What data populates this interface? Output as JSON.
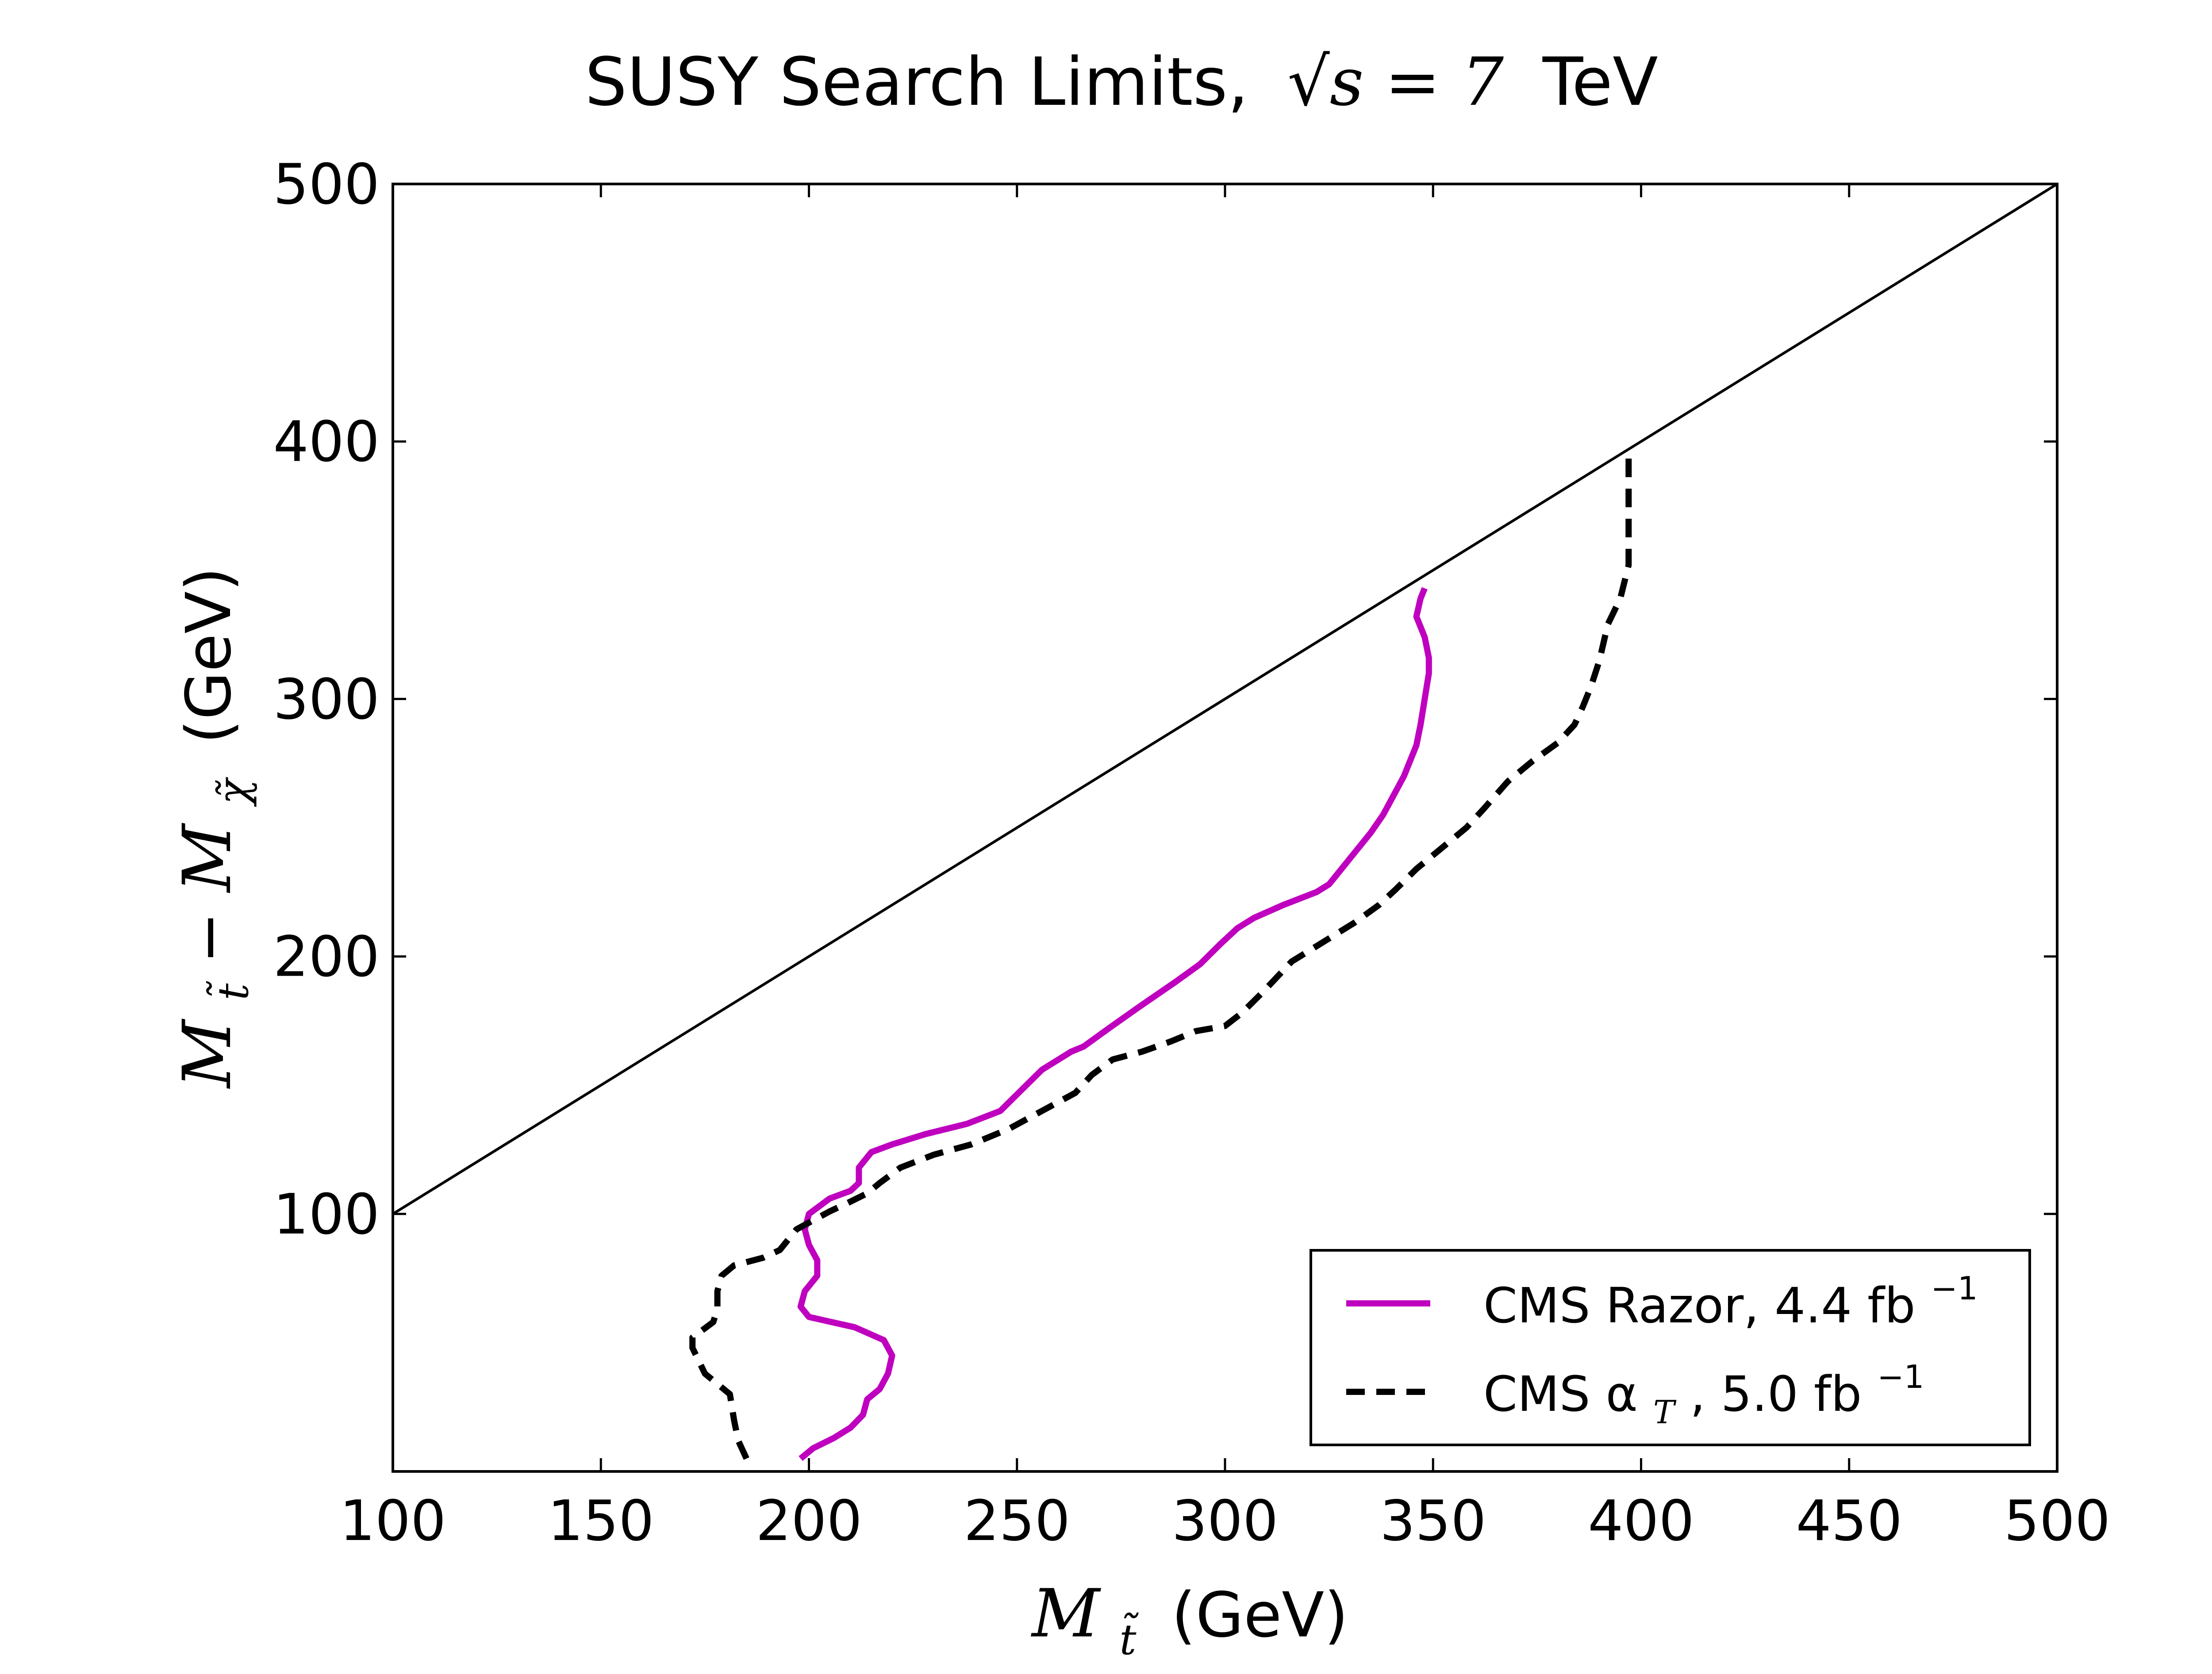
{
  "chart_data": {
    "type": "line",
    "title": {
      "prefix": "SUSY Search Limits,",
      "math": "√s = 7",
      "suffix": "TeV"
    },
    "xlabel": {
      "math": "M",
      "sub": "t̃",
      "unit": "(GeV)"
    },
    "ylabel": {
      "math_a": "M",
      "sub_a": "t̃",
      "minus": "−",
      "math_b": "M",
      "sub_b": "χ̃",
      "unit": "(GeV)"
    },
    "xlim": [
      100,
      500
    ],
    "ylim": [
      0,
      500
    ],
    "x_ticks": [
      100,
      150,
      200,
      250,
      300,
      350,
      400,
      450,
      500
    ],
    "y_ticks": [
      100,
      200,
      300,
      400,
      500
    ],
    "grid": false,
    "legend_position": "bottom-right",
    "reference_line": {
      "points": [
        [
          100,
          100
        ],
        [
          500,
          500
        ]
      ],
      "color": "#000000"
    },
    "series": [
      {
        "name": "CMS Razor, 4.4 fb",
        "name_sup": "−1",
        "style": "solid",
        "color": "#bf00bf",
        "points": [
          [
            198,
            5
          ],
          [
            201,
            9
          ],
          [
            206,
            13
          ],
          [
            210,
            17
          ],
          [
            213,
            22
          ],
          [
            214,
            28
          ],
          [
            217,
            32
          ],
          [
            219,
            38
          ],
          [
            220,
            45
          ],
          [
            218,
            51
          ],
          [
            211,
            56
          ],
          [
            200,
            60
          ],
          [
            198,
            64
          ],
          [
            199,
            70
          ],
          [
            202,
            76
          ],
          [
            202,
            82
          ],
          [
            200,
            88
          ],
          [
            199,
            94
          ],
          [
            200,
            100
          ],
          [
            205,
            106
          ],
          [
            210,
            109
          ],
          [
            212,
            112
          ],
          [
            212,
            118
          ],
          [
            215,
            124
          ],
          [
            220,
            127
          ],
          [
            228,
            131
          ],
          [
            238,
            135
          ],
          [
            246,
            140
          ],
          [
            251,
            148
          ],
          [
            256,
            156
          ],
          [
            263,
            163
          ],
          [
            266,
            165
          ],
          [
            272,
            172
          ],
          [
            279,
            180
          ],
          [
            288,
            190
          ],
          [
            294,
            197
          ],
          [
            299,
            205
          ],
          [
            303,
            211
          ],
          [
            307,
            215
          ],
          [
            314,
            220
          ],
          [
            322,
            225
          ],
          [
            325,
            228
          ],
          [
            327,
            232
          ],
          [
            330,
            238
          ],
          [
            335,
            248
          ],
          [
            338,
            255
          ],
          [
            343,
            270
          ],
          [
            346,
            282
          ],
          [
            347,
            290
          ],
          [
            348,
            300
          ],
          [
            349,
            310
          ],
          [
            349,
            316
          ],
          [
            348,
            324
          ],
          [
            346,
            332
          ],
          [
            347,
            339
          ],
          [
            348,
            343
          ]
        ]
      },
      {
        "name": "CMS α",
        "name_sub": "T",
        "name_suffix": ", 5.0 fb",
        "name_sup": "−1",
        "style": "dashed",
        "color": "#000000",
        "points": [
          [
            185,
            5
          ],
          [
            183,
            12
          ],
          [
            182,
            20
          ],
          [
            181,
            30
          ],
          [
            175,
            38
          ],
          [
            172,
            48
          ],
          [
            172,
            52
          ],
          [
            177,
            58
          ],
          [
            178,
            63
          ],
          [
            178,
            70
          ],
          [
            179,
            76
          ],
          [
            182,
            80
          ],
          [
            189,
            83
          ],
          [
            193,
            86
          ],
          [
            197,
            94
          ],
          [
            205,
            101
          ],
          [
            209,
            104
          ],
          [
            214,
            108
          ],
          [
            217,
            112
          ],
          [
            222,
            118
          ],
          [
            230,
            123
          ],
          [
            239,
            127
          ],
          [
            248,
            133
          ],
          [
            256,
            140
          ],
          [
            264,
            147
          ],
          [
            268,
            154
          ],
          [
            273,
            160
          ],
          [
            280,
            163
          ],
          [
            287,
            167
          ],
          [
            293,
            171
          ],
          [
            300,
            173
          ],
          [
            304,
            178
          ],
          [
            309,
            186
          ],
          [
            316,
            198
          ],
          [
            324,
            206
          ],
          [
            331,
            213
          ],
          [
            337,
            220
          ],
          [
            341,
            226
          ],
          [
            346,
            234
          ],
          [
            352,
            242
          ],
          [
            358,
            250
          ],
          [
            362,
            257
          ],
          [
            368,
            268
          ],
          [
            374,
            276
          ],
          [
            380,
            283
          ],
          [
            384,
            290
          ],
          [
            386,
            297
          ],
          [
            388,
            305
          ],
          [
            390,
            315
          ],
          [
            392,
            329
          ],
          [
            395,
            339
          ],
          [
            397,
            352
          ],
          [
            397,
            364
          ],
          [
            397,
            374
          ],
          [
            397,
            384
          ],
          [
            397,
            394
          ]
        ]
      }
    ]
  }
}
